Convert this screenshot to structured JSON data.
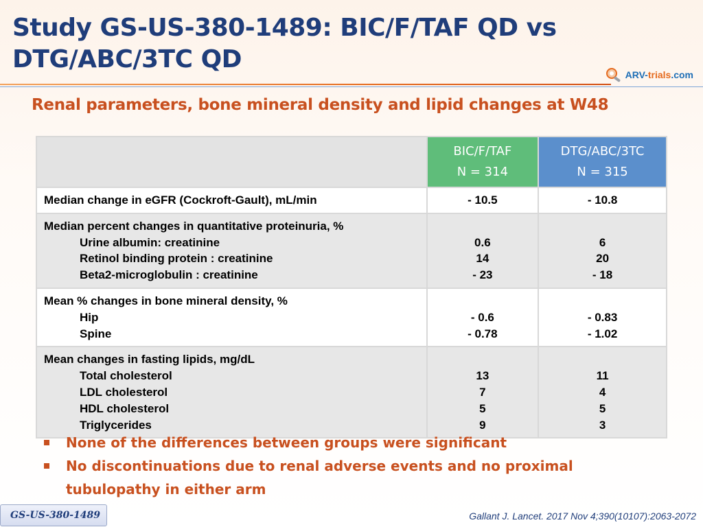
{
  "header": {
    "title_line1": "Study GS-US-380-1489: BIC/F/TAF QD vs",
    "title_line2": "DTG/ABC/3TC QD",
    "subtitle": "Renal parameters, bone mineral density and lipid changes at W48",
    "logo_prefix": "ARV-",
    "logo_trials": "trials",
    "logo_suffix": ".com"
  },
  "colors": {
    "title": "#1f3d7a",
    "accent_orange": "#c8501f",
    "col_bic": "#5fbd7a",
    "col_dtg": "#5b8fcc",
    "row_grey": "#e7e7e7"
  },
  "table": {
    "col1": {
      "name": "BIC/F/TAF",
      "n": "N = 314"
    },
    "col2": {
      "name": "DTG/ABC/3TC",
      "n": "N = 315"
    },
    "egfr": {
      "label": "Median change in eGFR (Cockroft-Gault), mL/min",
      "v1": "- 10.5",
      "v2": "- 10.8"
    },
    "proteinuria": {
      "label": "Median percent changes in quantitative proteinuria, %",
      "items": [
        {
          "label": "Urine albumin: creatinine",
          "v1": "0.6",
          "v2": "6"
        },
        {
          "label": "Retinol binding protein : creatinine",
          "v1": "14",
          "v2": "20"
        },
        {
          "label": "Beta2-microglobulin : creatinine",
          "v1": "- 23",
          "v2": "- 18"
        }
      ]
    },
    "bmd": {
      "label": "Mean % changes in bone mineral density, %",
      "items": [
        {
          "label": "Hip",
          "v1": "- 0.6",
          "v2": "- 0.83"
        },
        {
          "label": "Spine",
          "v1": "- 0.78",
          "v2": "- 1.02"
        }
      ]
    },
    "lipids": {
      "label": "Mean changes in fasting lipids, mg/dL",
      "items": [
        {
          "label": "Total cholesterol",
          "v1": "13",
          "v2": "11"
        },
        {
          "label": "LDL cholesterol",
          "v1": "7",
          "v2": "4"
        },
        {
          "label": "HDL cholesterol",
          "v1": "5",
          "v2": "5"
        },
        {
          "label": "Triglycerides",
          "v1": "9",
          "v2": "3"
        }
      ]
    }
  },
  "bullets": [
    "None of the differences between groups were significant",
    "No discontinuations due to renal adverse events and no proximal tubulopathy in either arm"
  ],
  "footer": {
    "study_tag": "GS-US-380-1489",
    "citation": "Gallant J. Lancet. 2017 Nov 4;390(10107):2063-2072"
  }
}
